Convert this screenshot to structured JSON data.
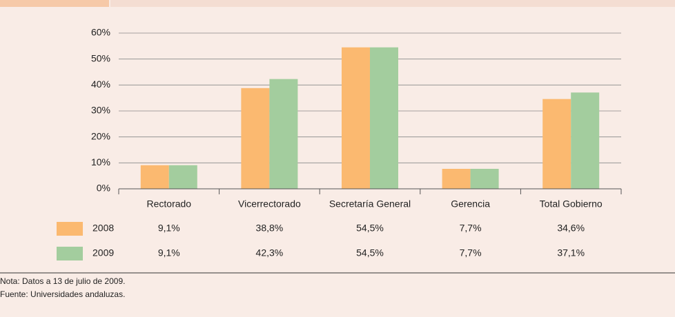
{
  "chart_data": {
    "type": "bar",
    "categories": [
      "Rectorado",
      "Vicerrectorado",
      "Secretaría General",
      "Gerencia",
      "Total Gobierno"
    ],
    "series": [
      {
        "name": "2008",
        "color": "#fbb970",
        "values": [
          9.1,
          38.8,
          54.5,
          7.7,
          34.6
        ],
        "value_labels": [
          "9,1%",
          "38,8%",
          "54,5%",
          "7,7%",
          "34,6%"
        ]
      },
      {
        "name": "2009",
        "color": "#a3cd9e",
        "values": [
          9.1,
          42.3,
          54.5,
          7.7,
          37.1
        ],
        "value_labels": [
          "9,1%",
          "42,3%",
          "54,5%",
          "7,7%",
          "37,1%"
        ]
      }
    ],
    "ylim": [
      0,
      60
    ],
    "yticks": [
      {
        "value": 0,
        "label": "0%"
      },
      {
        "value": 10,
        "label": "10%"
      },
      {
        "value": 20,
        "label": "20%"
      },
      {
        "value": 30,
        "label": "30%"
      },
      {
        "value": 40,
        "label": "40%"
      },
      {
        "value": 50,
        "label": "50%"
      },
      {
        "value": 60,
        "label": "60%"
      }
    ],
    "grid": true,
    "notes": [
      "Nota: Datos a 13 de julio de 2009.",
      "Fuente: Universidades andaluzas."
    ]
  }
}
